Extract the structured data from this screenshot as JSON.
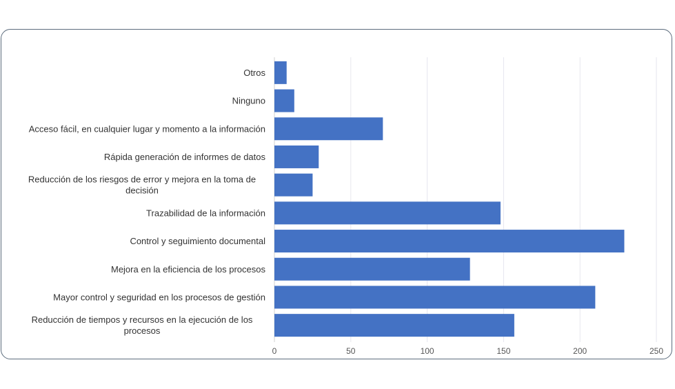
{
  "chart_data": {
    "type": "bar",
    "orientation": "horizontal",
    "categories": [
      "Otros",
      "Ninguno",
      "Acceso fácil, en cualquier lugar y momento a la información",
      "Rápida generación de informes de datos",
      "Reducción de los riesgos de error y mejora en la toma de decisión",
      "Trazabilidad de la información",
      "Control y seguimiento documental",
      "Mejora en la eficiencia de los procesos",
      "Mayor control y seguridad en los procesos de gestión",
      "Reducción de tiempos y recursos en la ejecución de los procesos"
    ],
    "category_lines": [
      [
        "Otros"
      ],
      [
        "Ninguno"
      ],
      [
        "Acceso fácil, en cualquier lugar y momento a la información"
      ],
      [
        "Rápida generación de informes de datos"
      ],
      [
        "Reducción de los riesgos de error y mejora en la toma de",
        "decisión"
      ],
      [
        "Trazabilidad de la información"
      ],
      [
        "Control y seguimiento documental"
      ],
      [
        "Mejora en la eficiencia de los procesos"
      ],
      [
        "Mayor control y seguridad en los procesos de gestión"
      ],
      [
        "Reducción de tiempos y recursos en la ejecución de los",
        "procesos"
      ]
    ],
    "values": [
      8,
      13,
      71,
      29,
      25,
      148,
      229,
      128,
      210,
      157
    ],
    "xlim": [
      0,
      250
    ],
    "xticks": [
      0,
      50,
      100,
      150,
      200,
      250
    ],
    "grid": "vertical",
    "bar_color": "#4472c4",
    "title": "",
    "xlabel": "",
    "ylabel": ""
  }
}
